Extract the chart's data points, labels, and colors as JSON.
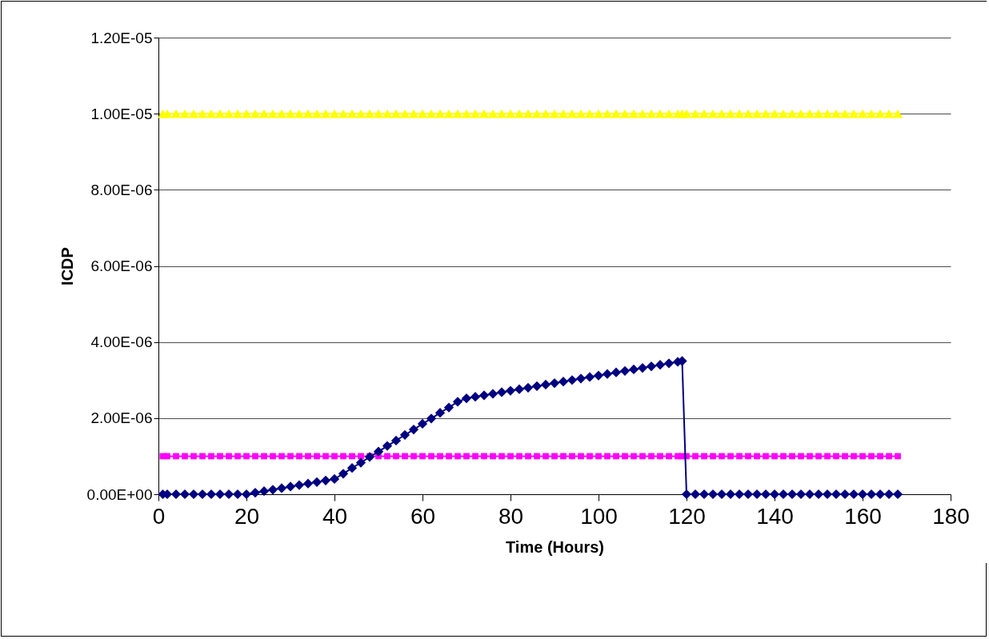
{
  "chart_data": {
    "type": "line",
    "xlabel": "Time (Hours)",
    "ylabel": "ICDP",
    "x": [
      1,
      2,
      4,
      6,
      8,
      10,
      12,
      14,
      16,
      18,
      20,
      22,
      24,
      26,
      28,
      30,
      32,
      34,
      36,
      38,
      40,
      42,
      44,
      46,
      48,
      50,
      52,
      54,
      56,
      58,
      60,
      62,
      64,
      66,
      68,
      70,
      72,
      74,
      76,
      78,
      80,
      82,
      84,
      86,
      88,
      90,
      92,
      94,
      96,
      98,
      100,
      102,
      104,
      106,
      108,
      110,
      112,
      114,
      116,
      118,
      119,
      120,
      122,
      124,
      126,
      128,
      130,
      132,
      134,
      136,
      138,
      140,
      142,
      144,
      146,
      148,
      150,
      152,
      154,
      156,
      158,
      160,
      162,
      164,
      166,
      168
    ],
    "series": [
      {
        "color": "#000080",
        "marker": "diamond",
        "values": [
          0,
          0,
          0,
          0,
          0,
          0,
          0,
          0,
          0,
          0,
          0,
          4e-08,
          8e-08,
          1.2e-07,
          1.6e-07,
          2e-07,
          2.4e-07,
          2.8e-07,
          3.2e-07,
          3.6e-07,
          4e-07,
          5.4e-07,
          6.9e-07,
          8.3e-07,
          9.8e-07,
          1.12e-06,
          1.27e-06,
          1.41e-06,
          1.56e-06,
          1.7e-06,
          1.85e-06,
          1.99e-06,
          2.14e-06,
          2.28e-06,
          2.43e-06,
          2.52e-06,
          2.56e-06,
          2.6e-06,
          2.64e-06,
          2.68e-06,
          2.72e-06,
          2.76e-06,
          2.8e-06,
          2.84e-06,
          2.88e-06,
          2.92e-06,
          2.96e-06,
          3e-06,
          3.04e-06,
          3.08e-06,
          3.12e-06,
          3.16e-06,
          3.2e-06,
          3.24e-06,
          3.28e-06,
          3.32e-06,
          3.36e-06,
          3.4e-06,
          3.44e-06,
          3.48e-06,
          3.5e-06,
          0,
          0,
          0,
          0,
          0,
          0,
          0,
          0,
          0,
          0,
          0,
          0,
          0,
          0,
          0,
          0,
          0,
          0,
          0,
          0,
          0,
          0,
          0,
          0,
          0
        ]
      },
      {
        "color": "#ff00ff",
        "marker": "square",
        "values": [
          1e-06,
          1e-06,
          1e-06,
          1e-06,
          1e-06,
          1e-06,
          1e-06,
          1e-06,
          1e-06,
          1e-06,
          1e-06,
          1e-06,
          1e-06,
          1e-06,
          1e-06,
          1e-06,
          1e-06,
          1e-06,
          1e-06,
          1e-06,
          1e-06,
          1e-06,
          1e-06,
          1e-06,
          1e-06,
          1e-06,
          1e-06,
          1e-06,
          1e-06,
          1e-06,
          1e-06,
          1e-06,
          1e-06,
          1e-06,
          1e-06,
          1e-06,
          1e-06,
          1e-06,
          1e-06,
          1e-06,
          1e-06,
          1e-06,
          1e-06,
          1e-06,
          1e-06,
          1e-06,
          1e-06,
          1e-06,
          1e-06,
          1e-06,
          1e-06,
          1e-06,
          1e-06,
          1e-06,
          1e-06,
          1e-06,
          1e-06,
          1e-06,
          1e-06,
          1e-06,
          1e-06,
          1e-06,
          1e-06,
          1e-06,
          1e-06,
          1e-06,
          1e-06,
          1e-06,
          1e-06,
          1e-06,
          1e-06,
          1e-06,
          1e-06,
          1e-06,
          1e-06,
          1e-06,
          1e-06,
          1e-06,
          1e-06,
          1e-06,
          1e-06,
          1e-06,
          1e-06,
          1e-06,
          1e-06,
          1e-06
        ]
      },
      {
        "color": "#ffff00",
        "marker": "triangle",
        "values": [
          1e-05,
          1e-05,
          1e-05,
          1e-05,
          1e-05,
          1e-05,
          1e-05,
          1e-05,
          1e-05,
          1e-05,
          1e-05,
          1e-05,
          1e-05,
          1e-05,
          1e-05,
          1e-05,
          1e-05,
          1e-05,
          1e-05,
          1e-05,
          1e-05,
          1e-05,
          1e-05,
          1e-05,
          1e-05,
          1e-05,
          1e-05,
          1e-05,
          1e-05,
          1e-05,
          1e-05,
          1e-05,
          1e-05,
          1e-05,
          1e-05,
          1e-05,
          1e-05,
          1e-05,
          1e-05,
          1e-05,
          1e-05,
          1e-05,
          1e-05,
          1e-05,
          1e-05,
          1e-05,
          1e-05,
          1e-05,
          1e-05,
          1e-05,
          1e-05,
          1e-05,
          1e-05,
          1e-05,
          1e-05,
          1e-05,
          1e-05,
          1e-05,
          1e-05,
          1e-05,
          1e-05,
          1e-05,
          1e-05,
          1e-05,
          1e-05,
          1e-05,
          1e-05,
          1e-05,
          1e-05,
          1e-05,
          1e-05,
          1e-05,
          1e-05,
          1e-05,
          1e-05,
          1e-05,
          1e-05,
          1e-05,
          1e-05,
          1e-05,
          1e-05,
          1e-05,
          1e-05,
          1e-05,
          1e-05,
          1e-05
        ]
      }
    ],
    "xlim": [
      0,
      180
    ],
    "xticks": [
      0,
      20,
      40,
      60,
      80,
      100,
      120,
      140,
      160,
      180
    ],
    "ylim": [
      0,
      1.2e-05
    ],
    "yticks": [
      {
        "value": 0,
        "label": "0.00E+00"
      },
      {
        "value": 2e-06,
        "label": "2.00E-06"
      },
      {
        "value": 4e-06,
        "label": "4.00E-06"
      },
      {
        "value": 6e-06,
        "label": "6.00E-06"
      },
      {
        "value": 8e-06,
        "label": "8.00E-06"
      },
      {
        "value": 1e-05,
        "label": "1.00E-05"
      },
      {
        "value": 1.2e-05,
        "label": "1.20E-05"
      }
    ],
    "grid": "y"
  }
}
